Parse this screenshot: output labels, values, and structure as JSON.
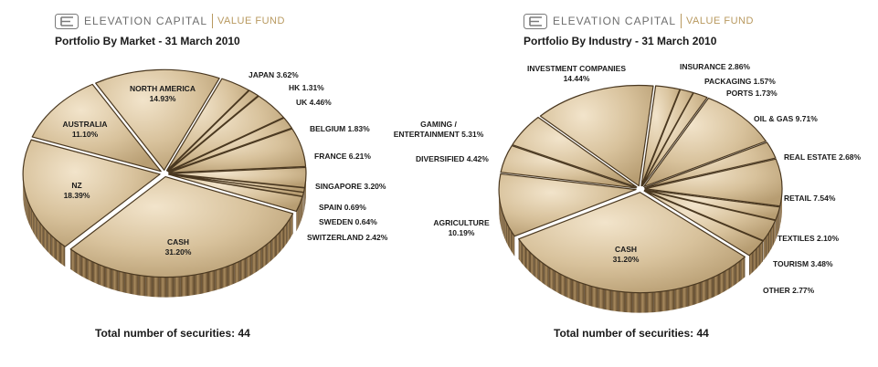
{
  "brand": {
    "name": "ELEVATION CAPITAL",
    "fund": "VALUE FUND"
  },
  "colors": {
    "face_light": "#f2e4cb",
    "face_mid": "#d8c29c",
    "face_dark": "#b79d72",
    "side_light": "#a88a5e",
    "side_dark": "#5c462a",
    "edge": "#4a3820",
    "brand_gold": "#b8995f"
  },
  "chart_data": [
    {
      "type": "pie",
      "title": "Portfolio By Market - 31 March 2010",
      "footer": "Total number of securities: 44",
      "slices": [
        {
          "label": "NORTH AMERICA",
          "value_label": "14.93%",
          "value": 14.93
        },
        {
          "label": "JAPAN",
          "value_label": "3.62%",
          "value": 3.62
        },
        {
          "label": "HK",
          "value_label": "1.31%",
          "value": 1.31
        },
        {
          "label": "UK",
          "value_label": "4.46%",
          "value": 4.46
        },
        {
          "label": "BELGIUM",
          "value_label": "1.83%",
          "value": 1.83
        },
        {
          "label": "FRANCE",
          "value_label": "6.21%",
          "value": 6.21
        },
        {
          "label": "SINGAPORE",
          "value_label": "3.20%",
          "value": 3.2
        },
        {
          "label": "SPAIN",
          "value_label": "0.69%",
          "value": 0.69
        },
        {
          "label": "SWEDEN",
          "value_label": "0.64%",
          "value": 0.64
        },
        {
          "label": "SWITZERLAND",
          "value_label": "2.42%",
          "value": 2.42
        },
        {
          "label": "CASH",
          "value_label": "31.20%",
          "value": 31.2
        },
        {
          "label": "NZ",
          "value_label": "18.39%",
          "value": 18.39
        },
        {
          "label": "AUSTRALIA",
          "value_label": "11.10%",
          "value": 11.1
        }
      ]
    },
    {
      "type": "pie",
      "title": "Portfolio By Industry - 31 March 2010",
      "footer": "Total number of securities: 44",
      "slices": [
        {
          "label": "INSURANCE",
          "value_label": "2.86%",
          "value": 2.86
        },
        {
          "label": "PACKAGING",
          "value_label": "1.57%",
          "value": 1.57
        },
        {
          "label": "PORTS",
          "value_label": "1.73%",
          "value": 1.73
        },
        {
          "label": "OIL & GAS",
          "value_label": "9.71%",
          "value": 9.71
        },
        {
          "label": "REAL ESTATE",
          "value_label": "2.68%",
          "value": 2.68
        },
        {
          "label": "RETAIL",
          "value_label": "7.54%",
          "value": 7.54
        },
        {
          "label": "TEXTILES",
          "value_label": "2.10%",
          "value": 2.1
        },
        {
          "label": "TOURISM",
          "value_label": "3.48%",
          "value": 3.48
        },
        {
          "label": "OTHER",
          "value_label": "2.77%",
          "value": 2.77
        },
        {
          "label": "CASH",
          "value_label": "31.20%",
          "value": 31.2
        },
        {
          "label": "AGRICULTURE",
          "value_label": "10.19%",
          "value": 10.19
        },
        {
          "label": "DIVERSIFIED",
          "value_label": "4.42%",
          "value": 4.42
        },
        {
          "label": "GAMING / ENTERTAINMENT",
          "value_label": "5.31%",
          "value": 5.31
        },
        {
          "label": "INVESTMENT COMPANIES",
          "value_label": "14.44%",
          "value": 14.44
        }
      ]
    }
  ]
}
